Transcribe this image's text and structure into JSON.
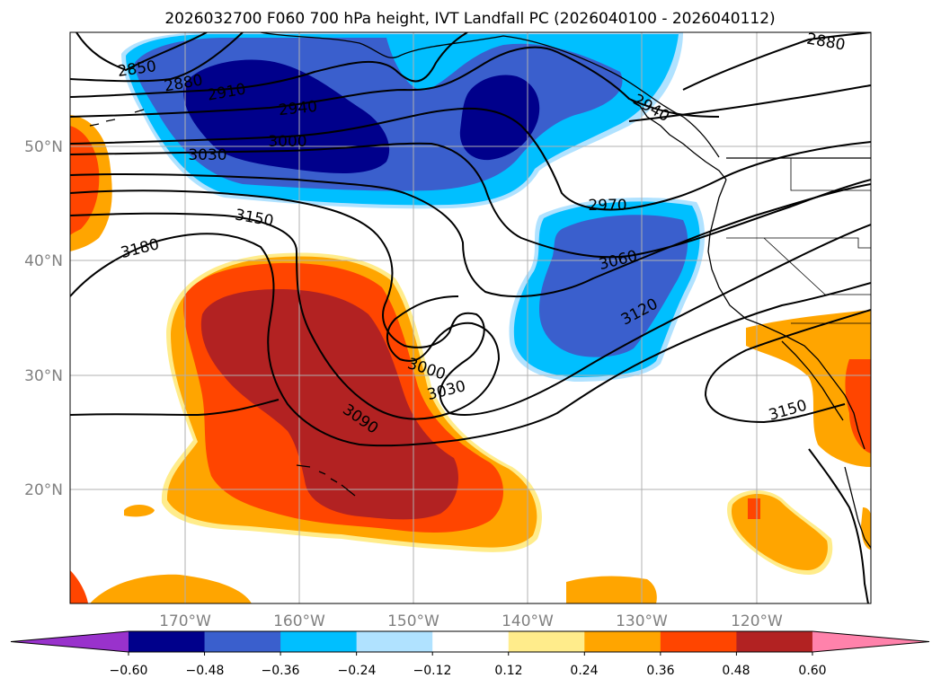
{
  "title": "2026032700 F060 700 hPa height, IVT Landfall PC (2026040100 - 2026040112)",
  "lat_labels": [
    "50°N",
    "40°N",
    "30°N",
    "20°N"
  ],
  "lon_labels": [
    "170°W",
    "160°W",
    "150°W",
    "140°W",
    "130°W",
    "120°W"
  ],
  "colorbar": {
    "ticks": [
      "−0.60",
      "−0.48",
      "−0.36",
      "−0.24",
      "−0.12",
      "0.12",
      "0.24",
      "0.36",
      "0.48",
      "0.60"
    ],
    "colors": [
      "#9932cc",
      "#00008b",
      "#3a5fcd",
      "#00bfff",
      "#b0e2ff",
      "#ffffff",
      "#ffec8b",
      "#ffa500",
      "#ff4500",
      "#b22222",
      "#ff82ab"
    ]
  },
  "contour_labels": [
    "2850",
    "2880",
    "2910",
    "2940",
    "3000",
    "3030",
    "3150",
    "3180",
    "2970",
    "3060",
    "3120",
    "3000",
    "3030",
    "3090",
    "3150",
    "2880",
    "2940"
  ],
  "colors": {
    "grid": "#b0b0b0",
    "contour": "#000000",
    "coast": "#000000"
  }
}
